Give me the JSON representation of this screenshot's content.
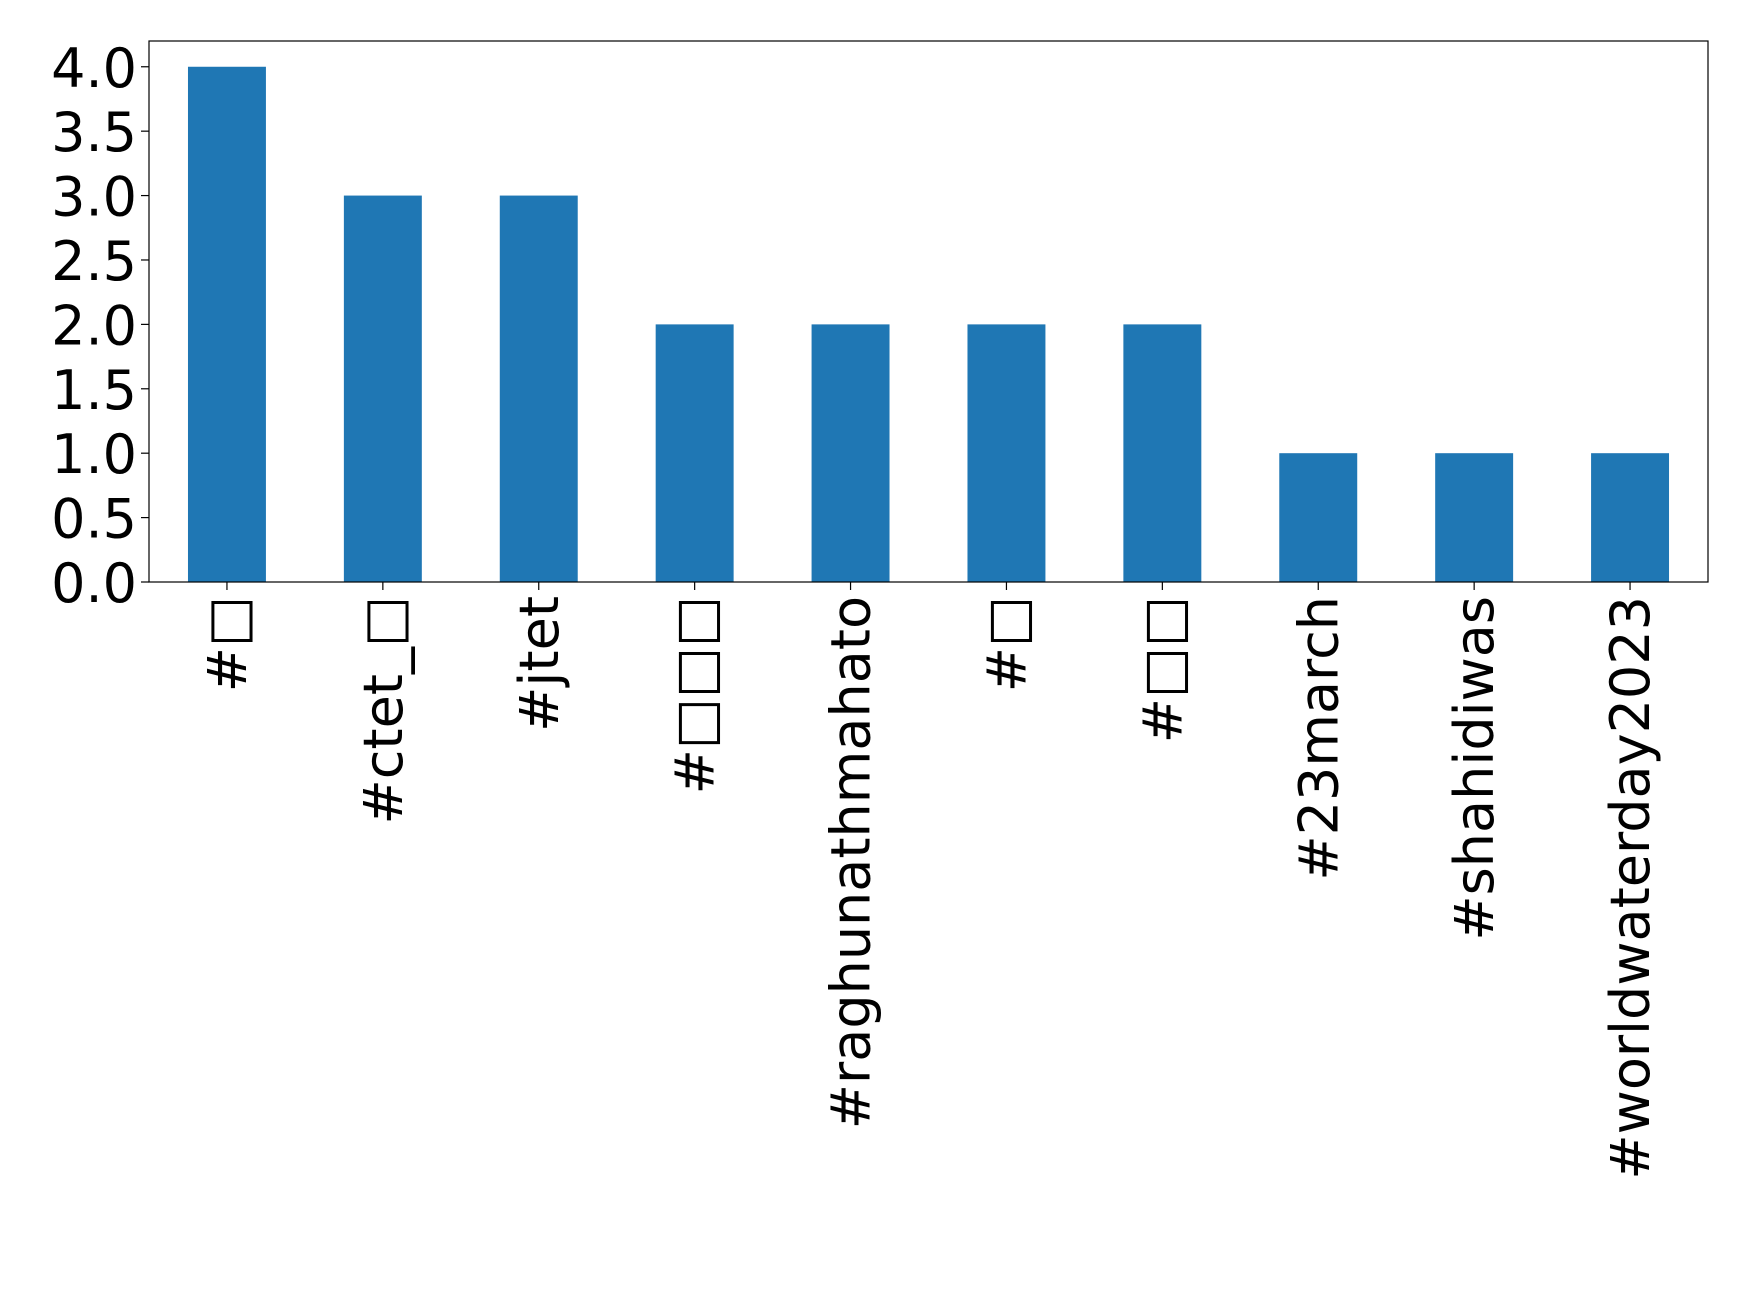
{
  "chart_data": {
    "type": "bar",
    "categories": [
      "#□",
      "#ctet_□",
      "#jtet",
      "#□□□",
      "#raghunathmahato",
      "#□",
      "#□□",
      "#23march",
      "#shahidiwas",
      "#worldwaterday2023"
    ],
    "values": [
      4,
      3,
      3,
      2,
      2,
      2,
      2,
      1,
      1,
      1
    ],
    "color": "#1f77b4",
    "ylim": [
      0,
      4.2
    ],
    "yticks": [
      {
        "value": 0,
        "label": "0.0"
      },
      {
        "value": 0.5,
        "label": "0.5"
      },
      {
        "value": 1,
        "label": "1.0"
      },
      {
        "value": 1.5,
        "label": "1.5"
      },
      {
        "value": 2,
        "label": "2.0"
      },
      {
        "value": 2.5,
        "label": "2.5"
      },
      {
        "value": 3,
        "label": "3.0"
      },
      {
        "value": 3.5,
        "label": "3.5"
      },
      {
        "value": 4,
        "label": "4.0"
      }
    ],
    "grid": false
  }
}
